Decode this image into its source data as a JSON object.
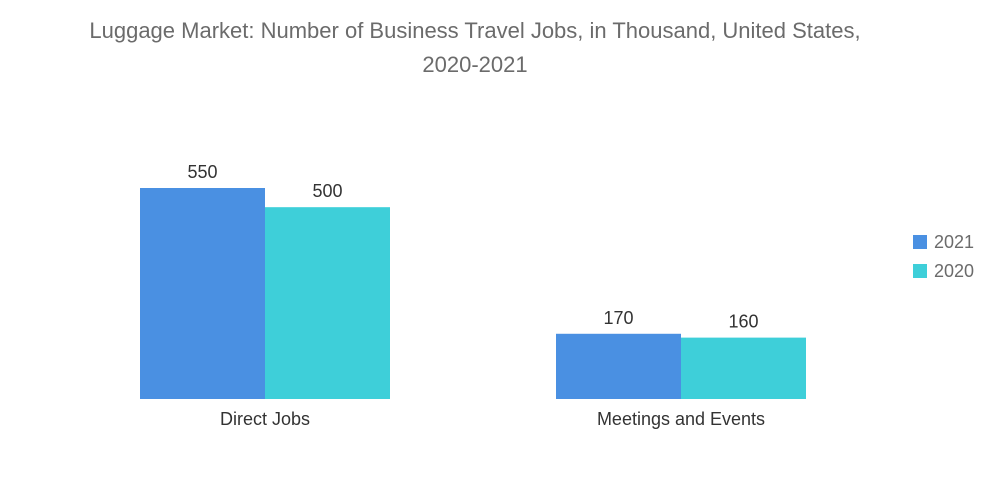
{
  "chart_data": {
    "type": "bar",
    "title_line1": "Luggage Market: Number of Business Travel Jobs, in Thousand, United States,",
    "title_line2": "2020-2021",
    "categories": [
      "Direct Jobs",
      "Meetings and Events"
    ],
    "series": [
      {
        "name": "2021",
        "values": [
          550,
          170
        ],
        "color": "#4a90e2"
      },
      {
        "name": "2020",
        "values": [
          500,
          160
        ],
        "color": "#3ecfd9"
      }
    ],
    "xlabel": "",
    "ylabel": "",
    "ylim": [
      0,
      550
    ],
    "grid": false,
    "legend_position": "right"
  }
}
